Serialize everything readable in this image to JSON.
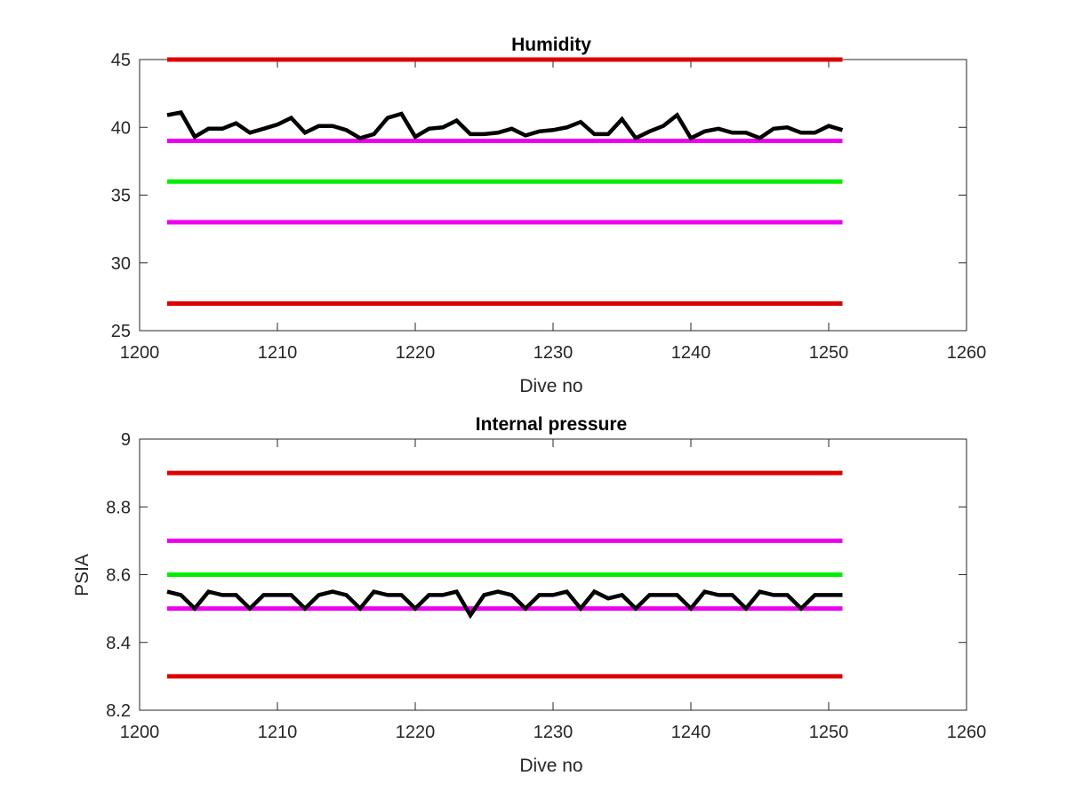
{
  "chart_data": [
    {
      "type": "line",
      "title": "Humidity",
      "xlabel": "Dive no",
      "ylabel": "",
      "xlim": [
        1200,
        1260
      ],
      "ylim": [
        25,
        45
      ],
      "xticks": [
        1200,
        1210,
        1220,
        1230,
        1240,
        1250,
        1260
      ],
      "yticks": [
        25,
        30,
        35,
        40,
        45
      ],
      "xtick_labels": [
        "1200",
        "1210",
        "1220",
        "1230",
        "1240",
        "1250",
        "1260"
      ],
      "ytick_labels": [
        "25",
        "30",
        "35",
        "40",
        "45"
      ],
      "grid": false,
      "legend": "none",
      "limit_lines": [
        {
          "y": 45,
          "x": [
            1202,
            1251
          ],
          "color": "#dd0000"
        },
        {
          "y": 39,
          "x": [
            1202,
            1251
          ],
          "color": "#ee00ee"
        },
        {
          "y": 36,
          "x": [
            1202,
            1251
          ],
          "color": "#00ee00"
        },
        {
          "y": 33,
          "x": [
            1202,
            1251
          ],
          "color": "#ee00ee"
        },
        {
          "y": 27,
          "x": [
            1202,
            1251
          ],
          "color": "#dd0000"
        }
      ],
      "series": [
        {
          "color": "#000000",
          "x": [
            1202,
            1203,
            1204,
            1205,
            1206,
            1207,
            1208,
            1209,
            1210,
            1211,
            1212,
            1213,
            1214,
            1215,
            1216,
            1217,
            1218,
            1219,
            1220,
            1221,
            1222,
            1223,
            1224,
            1225,
            1226,
            1227,
            1228,
            1229,
            1230,
            1231,
            1232,
            1233,
            1234,
            1235,
            1236,
            1237,
            1238,
            1239,
            1240,
            1241,
            1242,
            1243,
            1244,
            1245,
            1246,
            1247,
            1248,
            1249,
            1250,
            1251
          ],
          "values": [
            40.9,
            41.1,
            39.3,
            39.9,
            39.9,
            40.3,
            39.6,
            39.9,
            40.2,
            40.7,
            39.6,
            40.1,
            40.1,
            39.8,
            39.2,
            39.5,
            40.7,
            41.0,
            39.3,
            39.9,
            40.0,
            40.5,
            39.5,
            39.5,
            39.6,
            39.9,
            39.4,
            39.7,
            39.8,
            40.0,
            40.4,
            39.5,
            39.5,
            40.6,
            39.2,
            39.7,
            40.1,
            40.9,
            39.2,
            39.7,
            39.9,
            39.6,
            39.6,
            39.2,
            39.9,
            40.0,
            39.6,
            39.6,
            40.1,
            39.8
          ]
        }
      ]
    },
    {
      "type": "line",
      "title": "Internal pressure",
      "xlabel": "Dive no",
      "ylabel": "PSIA",
      "xlim": [
        1200,
        1260
      ],
      "ylim": [
        8.2,
        9.0
      ],
      "xticks": [
        1200,
        1210,
        1220,
        1230,
        1240,
        1250,
        1260
      ],
      "yticks": [
        8.2,
        8.4,
        8.6,
        8.8,
        9.0
      ],
      "xtick_labels": [
        "1200",
        "1210",
        "1220",
        "1230",
        "1240",
        "1250",
        "1260"
      ],
      "ytick_labels": [
        "8.2",
        "8.4",
        "8.6",
        "8.8",
        "9"
      ],
      "grid": false,
      "legend": "none",
      "limit_lines": [
        {
          "y": 8.9,
          "x": [
            1202,
            1251
          ],
          "color": "#dd0000"
        },
        {
          "y": 8.7,
          "x": [
            1202,
            1251
          ],
          "color": "#ee00ee"
        },
        {
          "y": 8.6,
          "x": [
            1202,
            1251
          ],
          "color": "#00ee00"
        },
        {
          "y": 8.5,
          "x": [
            1202,
            1251
          ],
          "color": "#ee00ee"
        },
        {
          "y": 8.3,
          "x": [
            1202,
            1251
          ],
          "color": "#dd0000"
        }
      ],
      "series": [
        {
          "color": "#000000",
          "x": [
            1202,
            1203,
            1204,
            1205,
            1206,
            1207,
            1208,
            1209,
            1210,
            1211,
            1212,
            1213,
            1214,
            1215,
            1216,
            1217,
            1218,
            1219,
            1220,
            1221,
            1222,
            1223,
            1224,
            1225,
            1226,
            1227,
            1228,
            1229,
            1230,
            1231,
            1232,
            1233,
            1234,
            1235,
            1236,
            1237,
            1238,
            1239,
            1240,
            1241,
            1242,
            1243,
            1244,
            1245,
            1246,
            1247,
            1248,
            1249,
            1250,
            1251
          ],
          "values": [
            8.55,
            8.54,
            8.5,
            8.55,
            8.54,
            8.54,
            8.5,
            8.54,
            8.54,
            8.54,
            8.5,
            8.54,
            8.55,
            8.54,
            8.5,
            8.55,
            8.54,
            8.54,
            8.5,
            8.54,
            8.54,
            8.55,
            8.48,
            8.54,
            8.55,
            8.54,
            8.5,
            8.54,
            8.54,
            8.55,
            8.5,
            8.55,
            8.53,
            8.54,
            8.5,
            8.54,
            8.54,
            8.54,
            8.5,
            8.55,
            8.54,
            8.54,
            8.5,
            8.55,
            8.54,
            8.54,
            8.5,
            8.54,
            8.54,
            8.54
          ]
        }
      ]
    }
  ]
}
